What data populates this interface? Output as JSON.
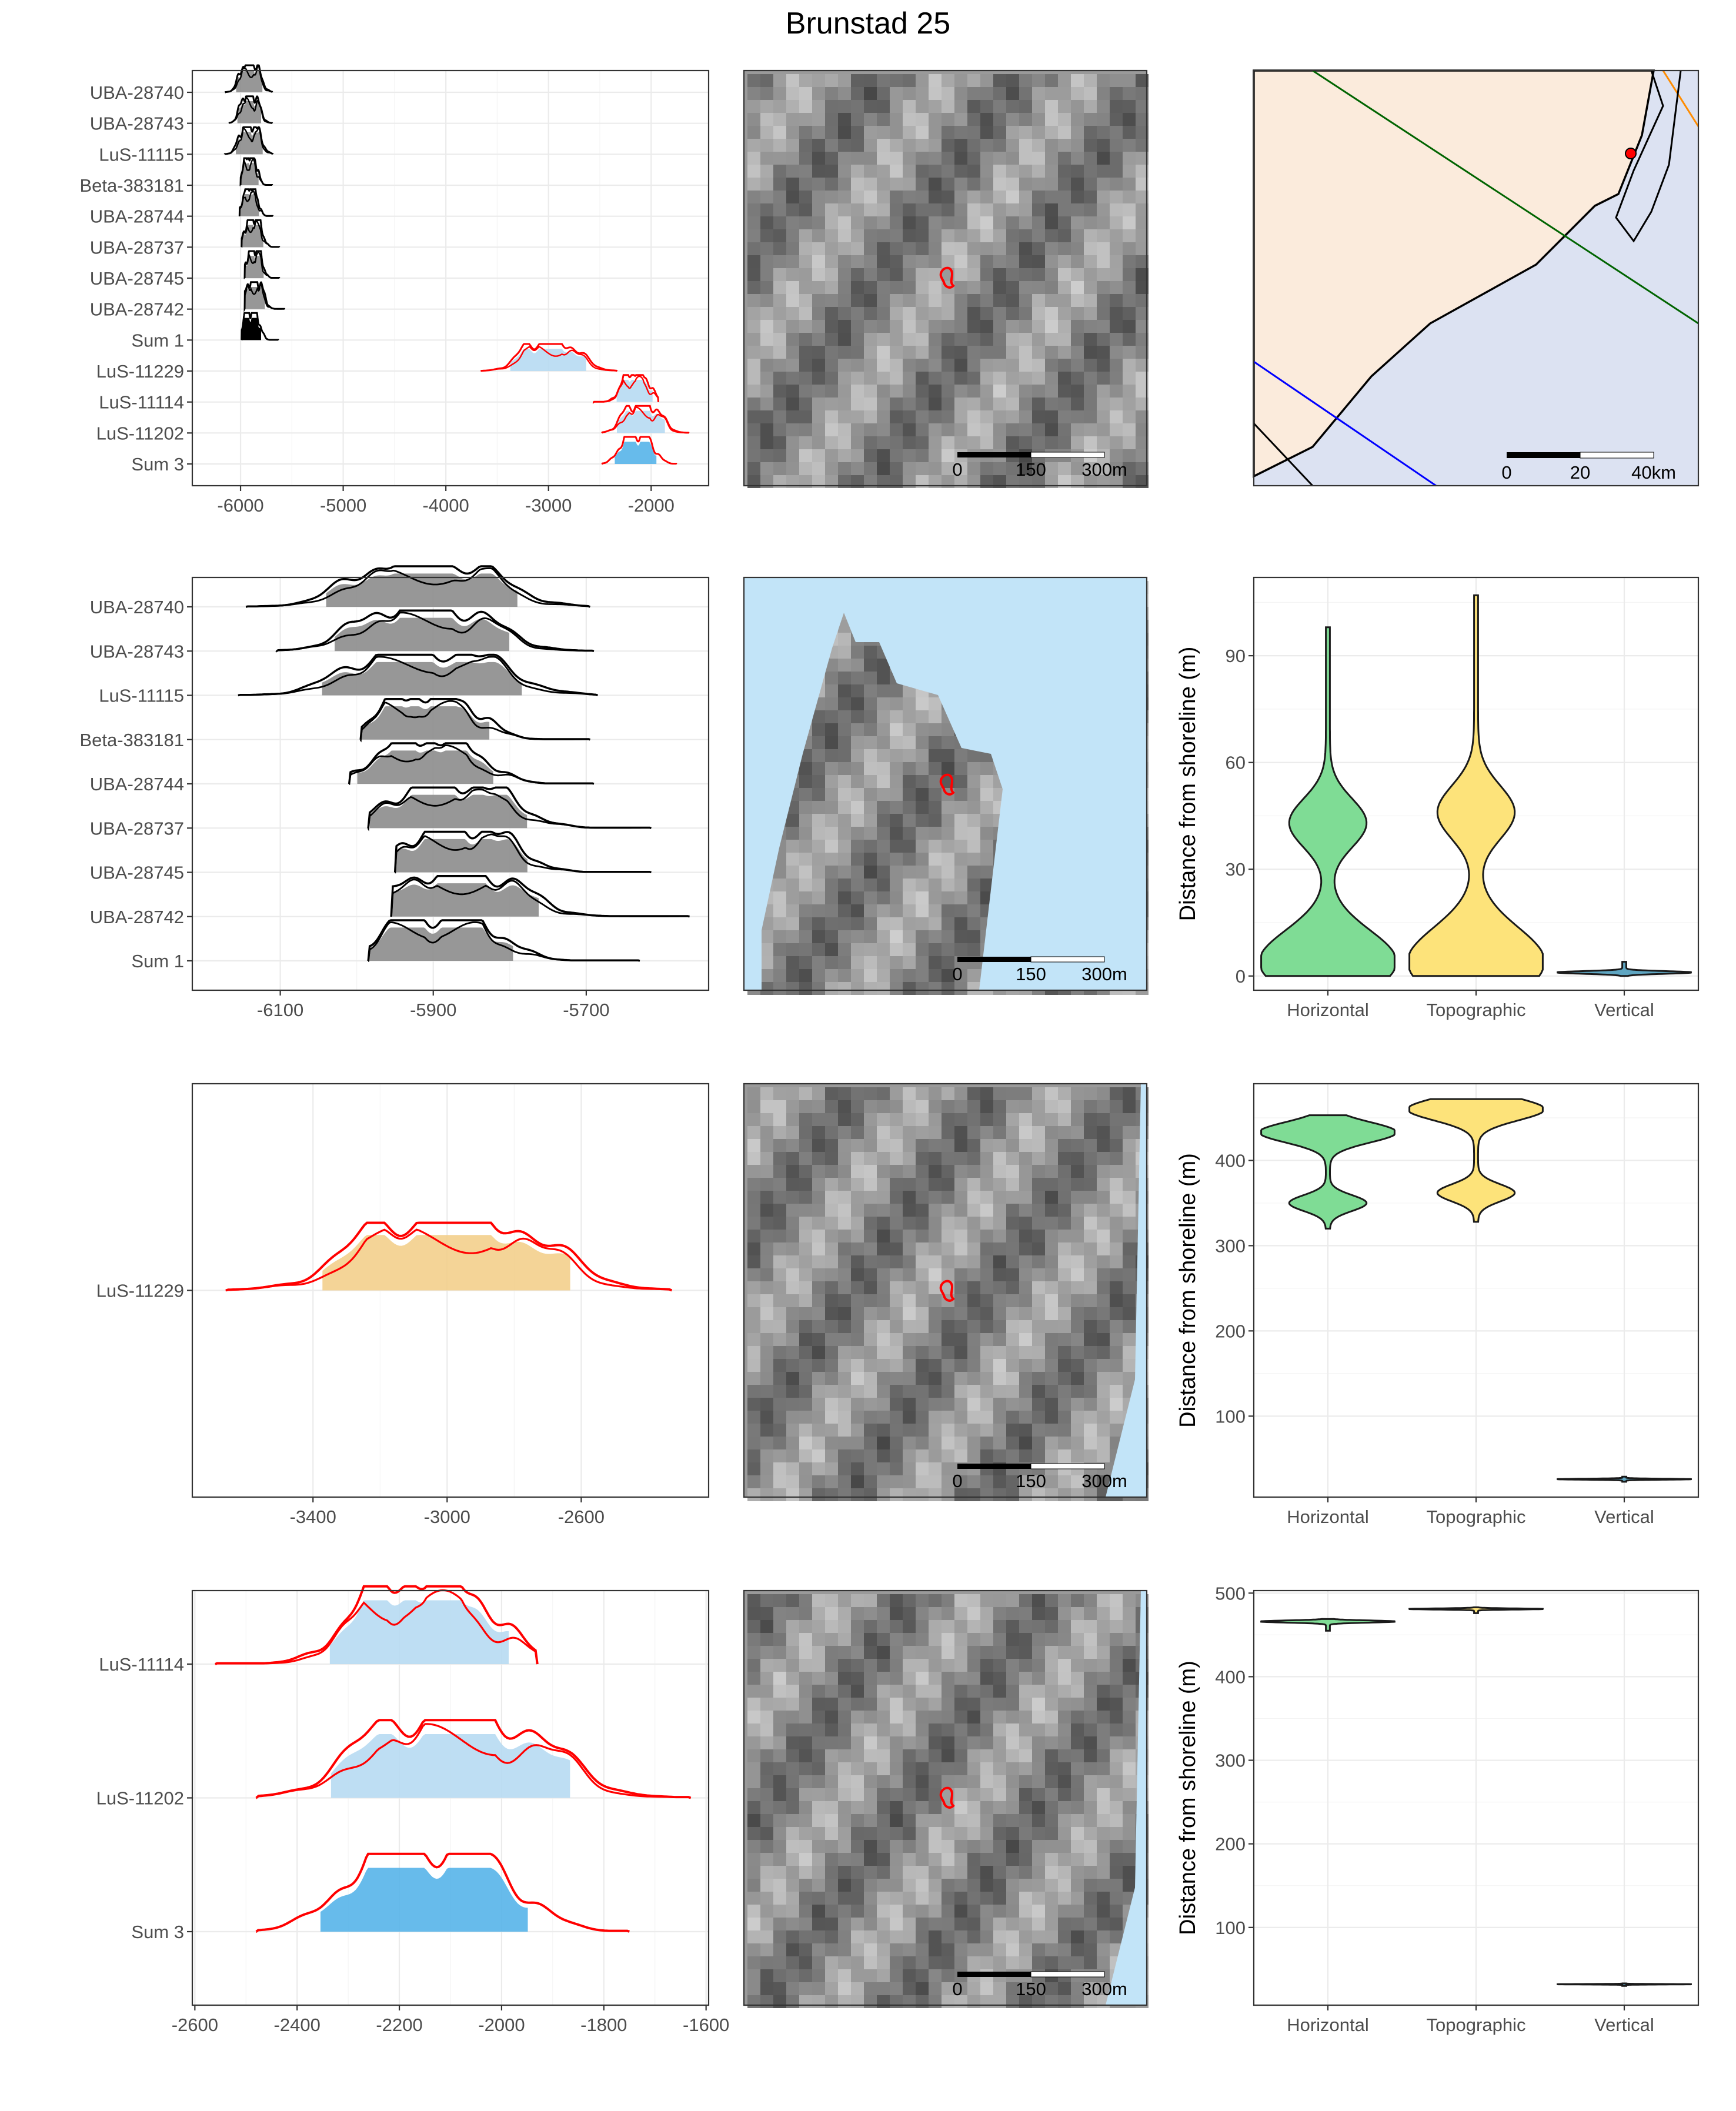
{
  "title": "Brunstad 25",
  "colors": {
    "early_dates": "#000000",
    "late_dates": "#ff0000",
    "sum1_fill": "#000000",
    "sum3_fill": "#56b4e9",
    "horizontal": "#7fdc95",
    "topographic": "#fde37a",
    "vertical": "#5fa6c2",
    "date_fill_grey": "#8c8c8c",
    "lus11229_fill": "#f3cf8c",
    "sea": "#c2e4f8",
    "land_overview": "#fbebdc",
    "sea_overview": "#dce2f2"
  },
  "chart_data": [
    {
      "type": "ridgeline",
      "panel": "row1-dates",
      "labels": [
        "UBA-28740",
        "UBA-28743",
        "LuS-11115",
        "Beta-383181",
        "UBA-28744",
        "UBA-28737",
        "UBA-28745",
        "UBA-28742",
        "Sum 1",
        "LuS-11229",
        "LuS-11114",
        "LuS-11202",
        "Sum 3"
      ],
      "series": [
        {
          "name": "UBA-28740",
          "range": [
            -6150,
            -5690
          ],
          "peak": -5915,
          "group": "early"
        },
        {
          "name": "UBA-28743",
          "range": [
            -6110,
            -5690
          ],
          "peak": -5915,
          "group": "early"
        },
        {
          "name": "LuS-11115",
          "range": [
            -6155,
            -5685
          ],
          "peak": -5915,
          "group": "early"
        },
        {
          "name": "Beta-383181",
          "range": [
            -6000,
            -5690
          ],
          "peak": -5910,
          "group": "early"
        },
        {
          "name": "UBA-28744",
          "range": [
            -6010,
            -5685
          ],
          "peak": -5910,
          "group": "early"
        },
        {
          "name": "UBA-28737",
          "range": [
            -5990,
            -5620
          ],
          "peak": -5880,
          "group": "early"
        },
        {
          "name": "UBA-28745",
          "range": [
            -5960,
            -5620
          ],
          "peak": -5870,
          "group": "early"
        },
        {
          "name": "UBA-28742",
          "range": [
            -5960,
            -5570
          ],
          "peak": -5870,
          "group": "early"
        },
        {
          "name": "Sum 1",
          "range": [
            -5990,
            -5630
          ],
          "peak": -5900,
          "group": "sum1"
        },
        {
          "name": "LuS-11229",
          "range": [
            -3660,
            -2330
          ],
          "peak": -3000,
          "group": "late"
        },
        {
          "name": "LuS-11114",
          "range": [
            -2560,
            -1930
          ],
          "peak": -2160,
          "group": "late"
        },
        {
          "name": "LuS-11202",
          "range": [
            -2480,
            -1630
          ],
          "peak": -2100,
          "group": "late"
        },
        {
          "name": "Sum 3",
          "range": [
            -2480,
            -1750
          ],
          "peak": -2150,
          "group": "sum3"
        }
      ],
      "xlim": [
        -6470,
        -1440
      ],
      "xticks": [
        -6000,
        -5000,
        -4000,
        -3000,
        -2000
      ]
    },
    {
      "type": "ridgeline",
      "panel": "row2-dates",
      "labels": [
        "UBA-28740",
        "UBA-28743",
        "LuS-11115",
        "Beta-383181",
        "UBA-28744",
        "UBA-28737",
        "UBA-28745",
        "UBA-28742",
        "Sum 1"
      ],
      "series": [
        {
          "name": "UBA-28740",
          "range": [
            -6145,
            -5695
          ],
          "peak": -5915
        },
        {
          "name": "UBA-28743",
          "range": [
            -6105,
            -5690
          ],
          "peak": -5915
        },
        {
          "name": "LuS-11115",
          "range": [
            -6155,
            -5685
          ],
          "peak": -5915
        },
        {
          "name": "Beta-383181",
          "range": [
            -5995,
            -5695
          ],
          "peak": -5910
        },
        {
          "name": "UBA-28744",
          "range": [
            -6010,
            -5690
          ],
          "peak": -5910
        },
        {
          "name": "UBA-28737",
          "range": [
            -5985,
            -5615
          ],
          "peak": -5880
        },
        {
          "name": "UBA-28745",
          "range": [
            -5950,
            -5615
          ],
          "peak": -5870
        },
        {
          "name": "UBA-28742",
          "range": [
            -5955,
            -5565
          ],
          "peak": -5870
        },
        {
          "name": "Sum 1",
          "range": [
            -5985,
            -5630
          ],
          "peak": -5895
        }
      ],
      "xlim": [
        -6215,
        -5540
      ],
      "xticks": [
        -6100,
        -5900,
        -5700
      ]
    },
    {
      "type": "ridgeline",
      "panel": "row3-dates",
      "labels": [
        "LuS-11229"
      ],
      "series": [
        {
          "name": "LuS-11229",
          "range": [
            -3660,
            -2330
          ],
          "peak": -3000
        }
      ],
      "xlim": [
        -3760,
        -2220
      ],
      "xticks": [
        -3400,
        -3000,
        -2600
      ]
    },
    {
      "type": "ridgeline",
      "panel": "row4-dates",
      "labels": [
        "LuS-11114",
        "LuS-11202",
        "Sum 3"
      ],
      "series": [
        {
          "name": "LuS-11114",
          "range": [
            -2560,
            -1930
          ],
          "peak": -2160
        },
        {
          "name": "LuS-11202",
          "range": [
            -2480,
            -1630
          ],
          "peak": -2100
        },
        {
          "name": "Sum 3",
          "range": [
            -2480,
            -1750
          ],
          "peak": -2150
        }
      ],
      "xlim": [
        -2605,
        -1595
      ],
      "xticks": [
        -2600,
        -2400,
        -2200,
        -2000,
        -1800,
        -1600
      ]
    },
    {
      "type": "violin",
      "panel": "row2-distance",
      "ylabel": "Distance from shoreline (m)",
      "categories": [
        "Horizontal",
        "Topographic",
        "Vertical"
      ],
      "ylim": [
        -4,
        112
      ],
      "yticks": [
        0,
        30,
        60,
        90
      ],
      "series": [
        {
          "name": "Horizontal",
          "min": 0,
          "max": 98,
          "modes": [
            4,
            43
          ]
        },
        {
          "name": "Topographic",
          "min": 0,
          "max": 107,
          "modes": [
            4,
            46
          ]
        },
        {
          "name": "Vertical",
          "min": 0,
          "max": 4,
          "modes": [
            1
          ]
        }
      ]
    },
    {
      "type": "violin",
      "panel": "row3-distance",
      "ylabel": "Distance from shoreline (m)",
      "categories": [
        "Horizontal",
        "Topographic",
        "Vertical"
      ],
      "ylim": [
        5,
        490
      ],
      "yticks": [
        100,
        200,
        300,
        400
      ],
      "series": [
        {
          "name": "Horizontal",
          "min": 320,
          "max": 453,
          "modes": [
            433,
            350
          ]
        },
        {
          "name": "Topographic",
          "min": 328,
          "max": 472,
          "modes": [
            460,
            362
          ]
        },
        {
          "name": "Vertical",
          "min": 23,
          "max": 29,
          "modes": [
            26
          ]
        }
      ]
    },
    {
      "type": "violin",
      "panel": "row4-distance",
      "ylabel": "Distance from shoreline (m)",
      "categories": [
        "Horizontal",
        "Topographic",
        "Vertical"
      ],
      "ylim": [
        7,
        503
      ],
      "yticks": [
        100,
        200,
        300,
        400,
        500
      ],
      "series": [
        {
          "name": "Horizontal",
          "min": 455,
          "max": 469,
          "modes": [
            466
          ]
        },
        {
          "name": "Topographic",
          "min": 476,
          "max": 483,
          "modes": [
            481
          ]
        },
        {
          "name": "Vertical",
          "min": 30,
          "max": 33,
          "modes": [
            32
          ]
        }
      ]
    }
  ],
  "scalebars": {
    "local": [
      "0",
      "150",
      "300m"
    ],
    "overview": [
      "0",
      "20",
      "40km"
    ]
  }
}
